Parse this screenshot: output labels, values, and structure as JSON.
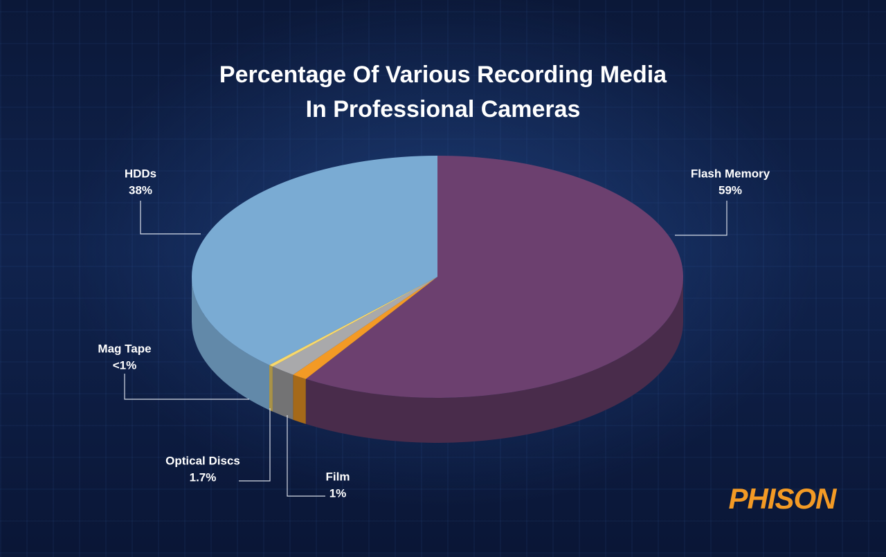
{
  "chart_data": {
    "type": "pie3d",
    "title": [
      "Percentage Of Various Recording Media",
      "In Professional Cameras"
    ],
    "categories": [
      "Flash Memory",
      "Film",
      "Optical Discs",
      "Mag Tape",
      "HDDs"
    ],
    "values": [
      59,
      1,
      1.7,
      0.3,
      38
    ],
    "value_labels": [
      "59%",
      "1%",
      "1.7%",
      "<1%",
      "38%"
    ],
    "colors": [
      "#6c406f",
      "#f39a25",
      "#a9a9ab",
      "#f8d86a",
      "#7aabd3"
    ],
    "logo": "PHISON"
  }
}
